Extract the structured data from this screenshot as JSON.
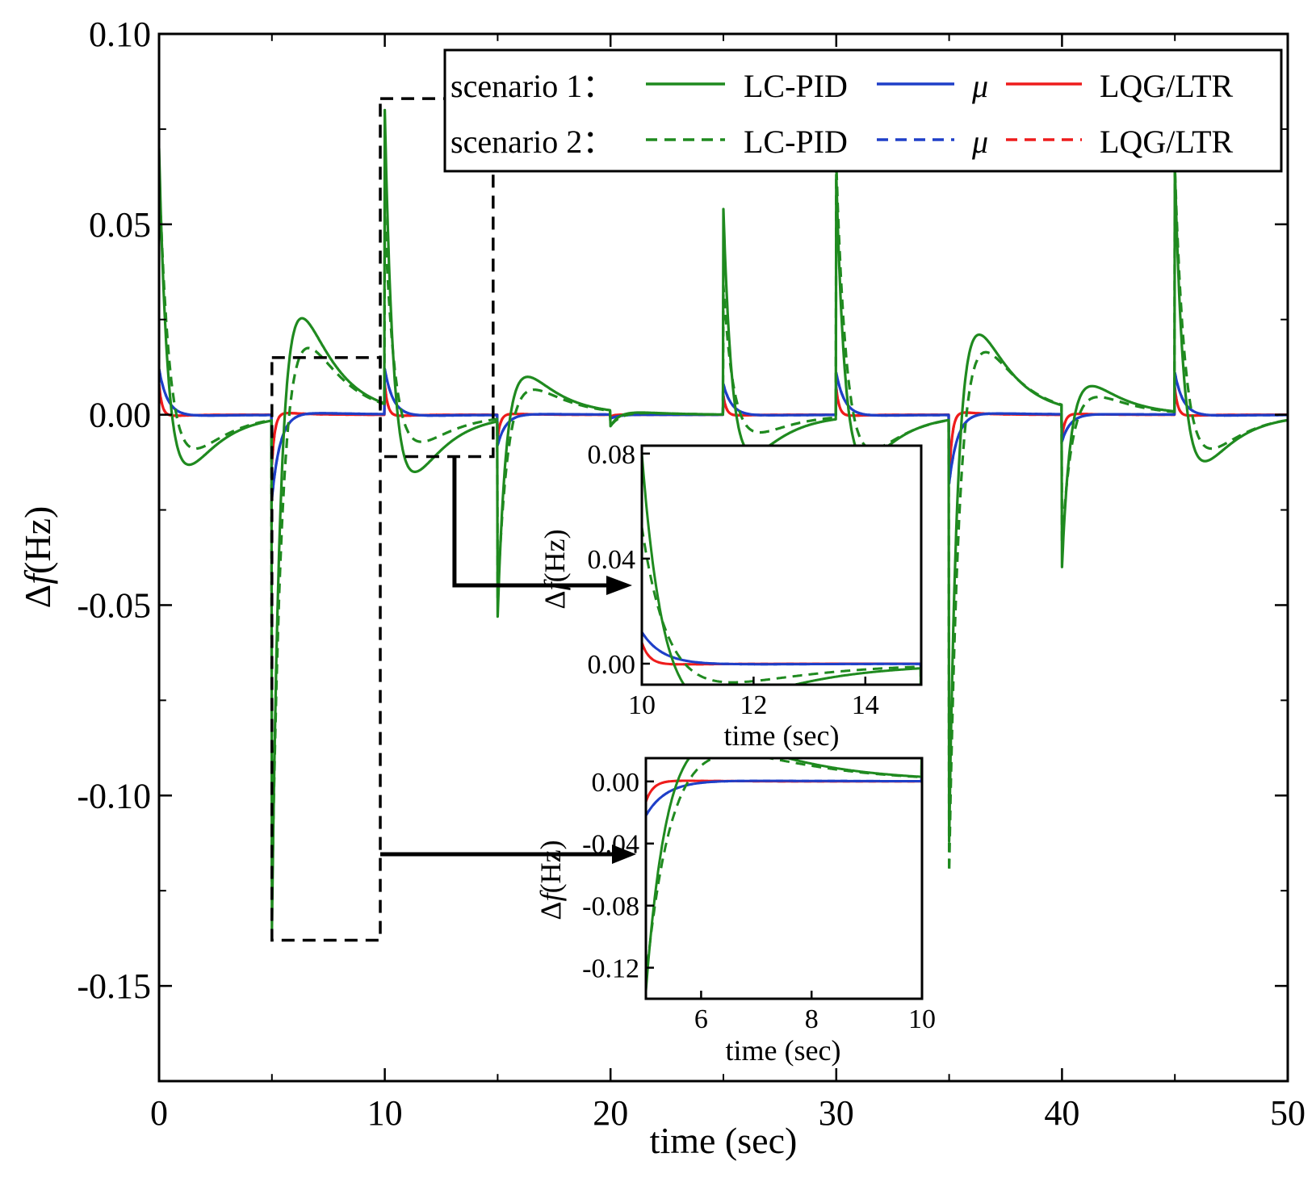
{
  "colors": {
    "lc_pid": "#1f8a1f",
    "mu": "#1f3fc8",
    "lqg": "#ee1c1c",
    "frame": "#000000"
  },
  "legend": {
    "rows": [
      {
        "scenario": "scenario 1：",
        "style": "solid",
        "labels": [
          "LC-PID",
          "μ",
          "LQG/LTR"
        ]
      },
      {
        "scenario": "scenario 2：",
        "style": "dashed",
        "labels": [
          "LC-PID",
          "μ",
          "LQG/LTR"
        ]
      }
    ]
  },
  "chart_data": [
    {
      "id": "main",
      "type": "line",
      "xlabel": "time (sec)",
      "ylabel_delta": "Δ",
      "ylabel_f": "f",
      "ylabel_unit": "(Hz)",
      "xlim": [
        0,
        50
      ],
      "ylim": [
        -0.175,
        0.1
      ],
      "xticks": [
        0,
        10,
        20,
        30,
        40,
        50
      ],
      "xtick_labels": [
        "0",
        "10",
        "20",
        "30",
        "40",
        "50"
      ],
      "yticks": [
        0.1,
        0.05,
        0.0,
        -0.05,
        -0.1,
        -0.15
      ],
      "ytick_labels": [
        "0.10",
        "0.05",
        "0.00",
        "-0.05",
        "-0.10",
        "-0.15"
      ],
      "disturbances": [
        {
          "t": 0,
          "lc1": 0.07,
          "lc2": 0.065,
          "mu": 0.012,
          "lqg": 0.008
        },
        {
          "t": 5,
          "lc1": -0.135,
          "lc2": -0.128,
          "mu": -0.022,
          "lqg": -0.013
        },
        {
          "t": 10,
          "lc1": 0.08,
          "lc2": 0.052,
          "mu": 0.012,
          "lqg": 0.008
        },
        {
          "t": 15,
          "lc1": -0.053,
          "lc2": -0.048,
          "mu": -0.008,
          "lqg": -0.006
        },
        {
          "t": 20,
          "lc1": -0.003,
          "lc2": -0.003,
          "mu": -0.001,
          "lqg": -0.0006
        },
        {
          "t": 25,
          "lc1": 0.054,
          "lc2": 0.034,
          "mu": 0.008,
          "lqg": 0.005
        },
        {
          "t": 30,
          "lc1": 0.063,
          "lc2": 0.066,
          "mu": 0.011,
          "lqg": 0.007
        },
        {
          "t": 35,
          "lc1": -0.112,
          "lc2": -0.12,
          "mu": -0.018,
          "lqg": -0.017
        },
        {
          "t": 40,
          "lc1": -0.04,
          "lc2": -0.034,
          "mu": -0.007,
          "lqg": -0.006
        },
        {
          "t": 45,
          "lc1": 0.065,
          "lc2": 0.065,
          "mu": 0.011,
          "lqg": 0.007
        }
      ],
      "zoom_boxes": [
        {
          "x": [
            5,
            9.8
          ],
          "y": [
            -0.138,
            0.015
          ]
        },
        {
          "x": [
            9.8,
            14.8
          ],
          "y": [
            -0.011,
            0.083
          ]
        }
      ]
    },
    {
      "id": "inset_top",
      "type": "line",
      "xlabel": "time (sec)",
      "ylabel_delta": "Δ",
      "ylabel_f": "f",
      "ylabel_unit": "(Hz)",
      "xlim": [
        10,
        15
      ],
      "ylim": [
        -0.008,
        0.083
      ],
      "xticks": [
        10,
        12,
        14
      ],
      "xtick_labels": [
        "10",
        "12",
        "14"
      ],
      "yticks": [
        0.08,
        0.04,
        0.0
      ],
      "ytick_labels": [
        "0.08",
        "0.04",
        "0.00"
      ]
    },
    {
      "id": "inset_bottom",
      "type": "line",
      "xlabel": "time (sec)",
      "ylabel_delta": "Δ",
      "ylabel_f": "f",
      "ylabel_unit": "(Hz)",
      "xlim": [
        5,
        10
      ],
      "ylim": [
        -0.14,
        0.015
      ],
      "xticks": [
        6,
        8,
        10
      ],
      "xtick_labels": [
        "6",
        "8",
        "10"
      ],
      "yticks": [
        0.0,
        -0.04,
        -0.08,
        -0.12
      ],
      "ytick_labels": [
        "0.00",
        "-0.04",
        "-0.08",
        "-0.12"
      ]
    }
  ]
}
